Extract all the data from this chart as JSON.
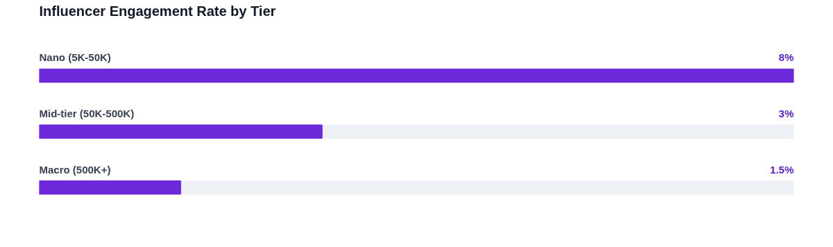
{
  "chart_data": {
    "type": "bar",
    "orientation": "horizontal",
    "title": "Influencer Engagement Rate by Tier",
    "categories": [
      "Nano (5K-50K)",
      "Mid-tier (50K-500K)",
      "Macro (500K+)"
    ],
    "values": [
      8,
      3,
      1.5
    ],
    "value_labels": [
      "8%",
      "3%",
      "1.5%"
    ],
    "color": "#6d28d9",
    "xlim": [
      0,
      8
    ],
    "tick_labels": false
  }
}
